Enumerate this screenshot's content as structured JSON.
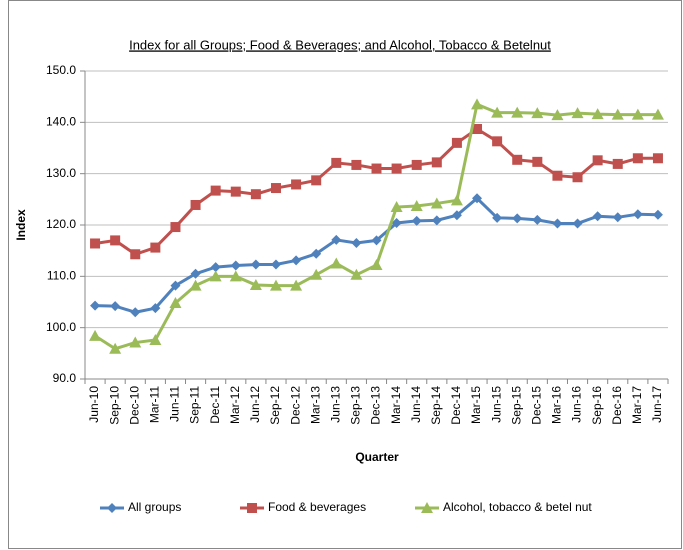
{
  "chart_data": {
    "type": "line",
    "title": "Index for all Groups; Food & Beverages; and Alcohol, Tobacco & Betelnut",
    "x_label": "Quarter",
    "y_label": "Index",
    "categories": [
      "Jun-10",
      "Sep-10",
      "Dec-10",
      "Mar-11",
      "Jun-11",
      "Sep-11",
      "Dec-11",
      "Mar-12",
      "Jun-12",
      "Sep-12",
      "Dec-12",
      "Mar-13",
      "Jun-13",
      "Sep-13",
      "Dec-13",
      "Mar-14",
      "Jun-14",
      "Sep-14",
      "Dec-14",
      "Mar-15",
      "Jun-15",
      "Sep-15",
      "Dec-15",
      "Mar-16",
      "Jun-16",
      "Sep-16",
      "Dec-16",
      "Mar-17",
      "Jun-17"
    ],
    "series": [
      {
        "name": "All groups",
        "color": "#4f81bd",
        "marker": "diamond",
        "values": [
          104.3,
          104.2,
          103.0,
          103.8,
          108.2,
          110.5,
          111.8,
          112.1,
          112.3,
          112.3,
          113.1,
          114.4,
          117.1,
          116.5,
          117.0,
          120.4,
          120.8,
          120.9,
          121.9,
          125.2,
          121.4,
          121.3,
          121.0,
          120.3,
          120.3,
          121.7,
          121.5,
          122.1,
          122.0
        ]
      },
      {
        "name": "Food & beverages",
        "color": "#c0504d",
        "marker": "square",
        "values": [
          116.4,
          117.0,
          114.3,
          115.6,
          119.6,
          123.9,
          126.7,
          126.5,
          126.0,
          127.2,
          127.9,
          128.7,
          132.1,
          131.7,
          131.0,
          131.0,
          131.7,
          132.2,
          136.0,
          138.7,
          136.3,
          132.7,
          132.3,
          129.6,
          129.3,
          132.6,
          131.9,
          133.0,
          133.0
        ]
      },
      {
        "name": "Alcohol, tobacco & betel nut",
        "color": "#9bbb59",
        "marker": "triangle",
        "values": [
          98.4,
          95.9,
          97.1,
          97.6,
          104.8,
          108.2,
          110.0,
          110.0,
          108.3,
          108.2,
          108.2,
          110.3,
          112.5,
          110.3,
          112.2,
          123.5,
          123.7,
          124.2,
          124.8,
          143.5,
          141.9,
          141.9,
          141.8,
          141.4,
          141.8,
          141.6,
          141.5,
          141.5,
          141.5
        ]
      }
    ],
    "ylim": [
      90,
      150
    ],
    "yticks": [
      {
        "value": 90,
        "label": "90.0"
      },
      {
        "value": 100,
        "label": "100.0"
      },
      {
        "value": 110,
        "label": "110.0"
      },
      {
        "value": 120,
        "label": "120.0"
      },
      {
        "value": 130,
        "label": "130.0"
      },
      {
        "value": 140,
        "label": "140.0"
      },
      {
        "value": 150,
        "label": "150.0"
      }
    ],
    "grid": true,
    "legend": "bottom"
  }
}
